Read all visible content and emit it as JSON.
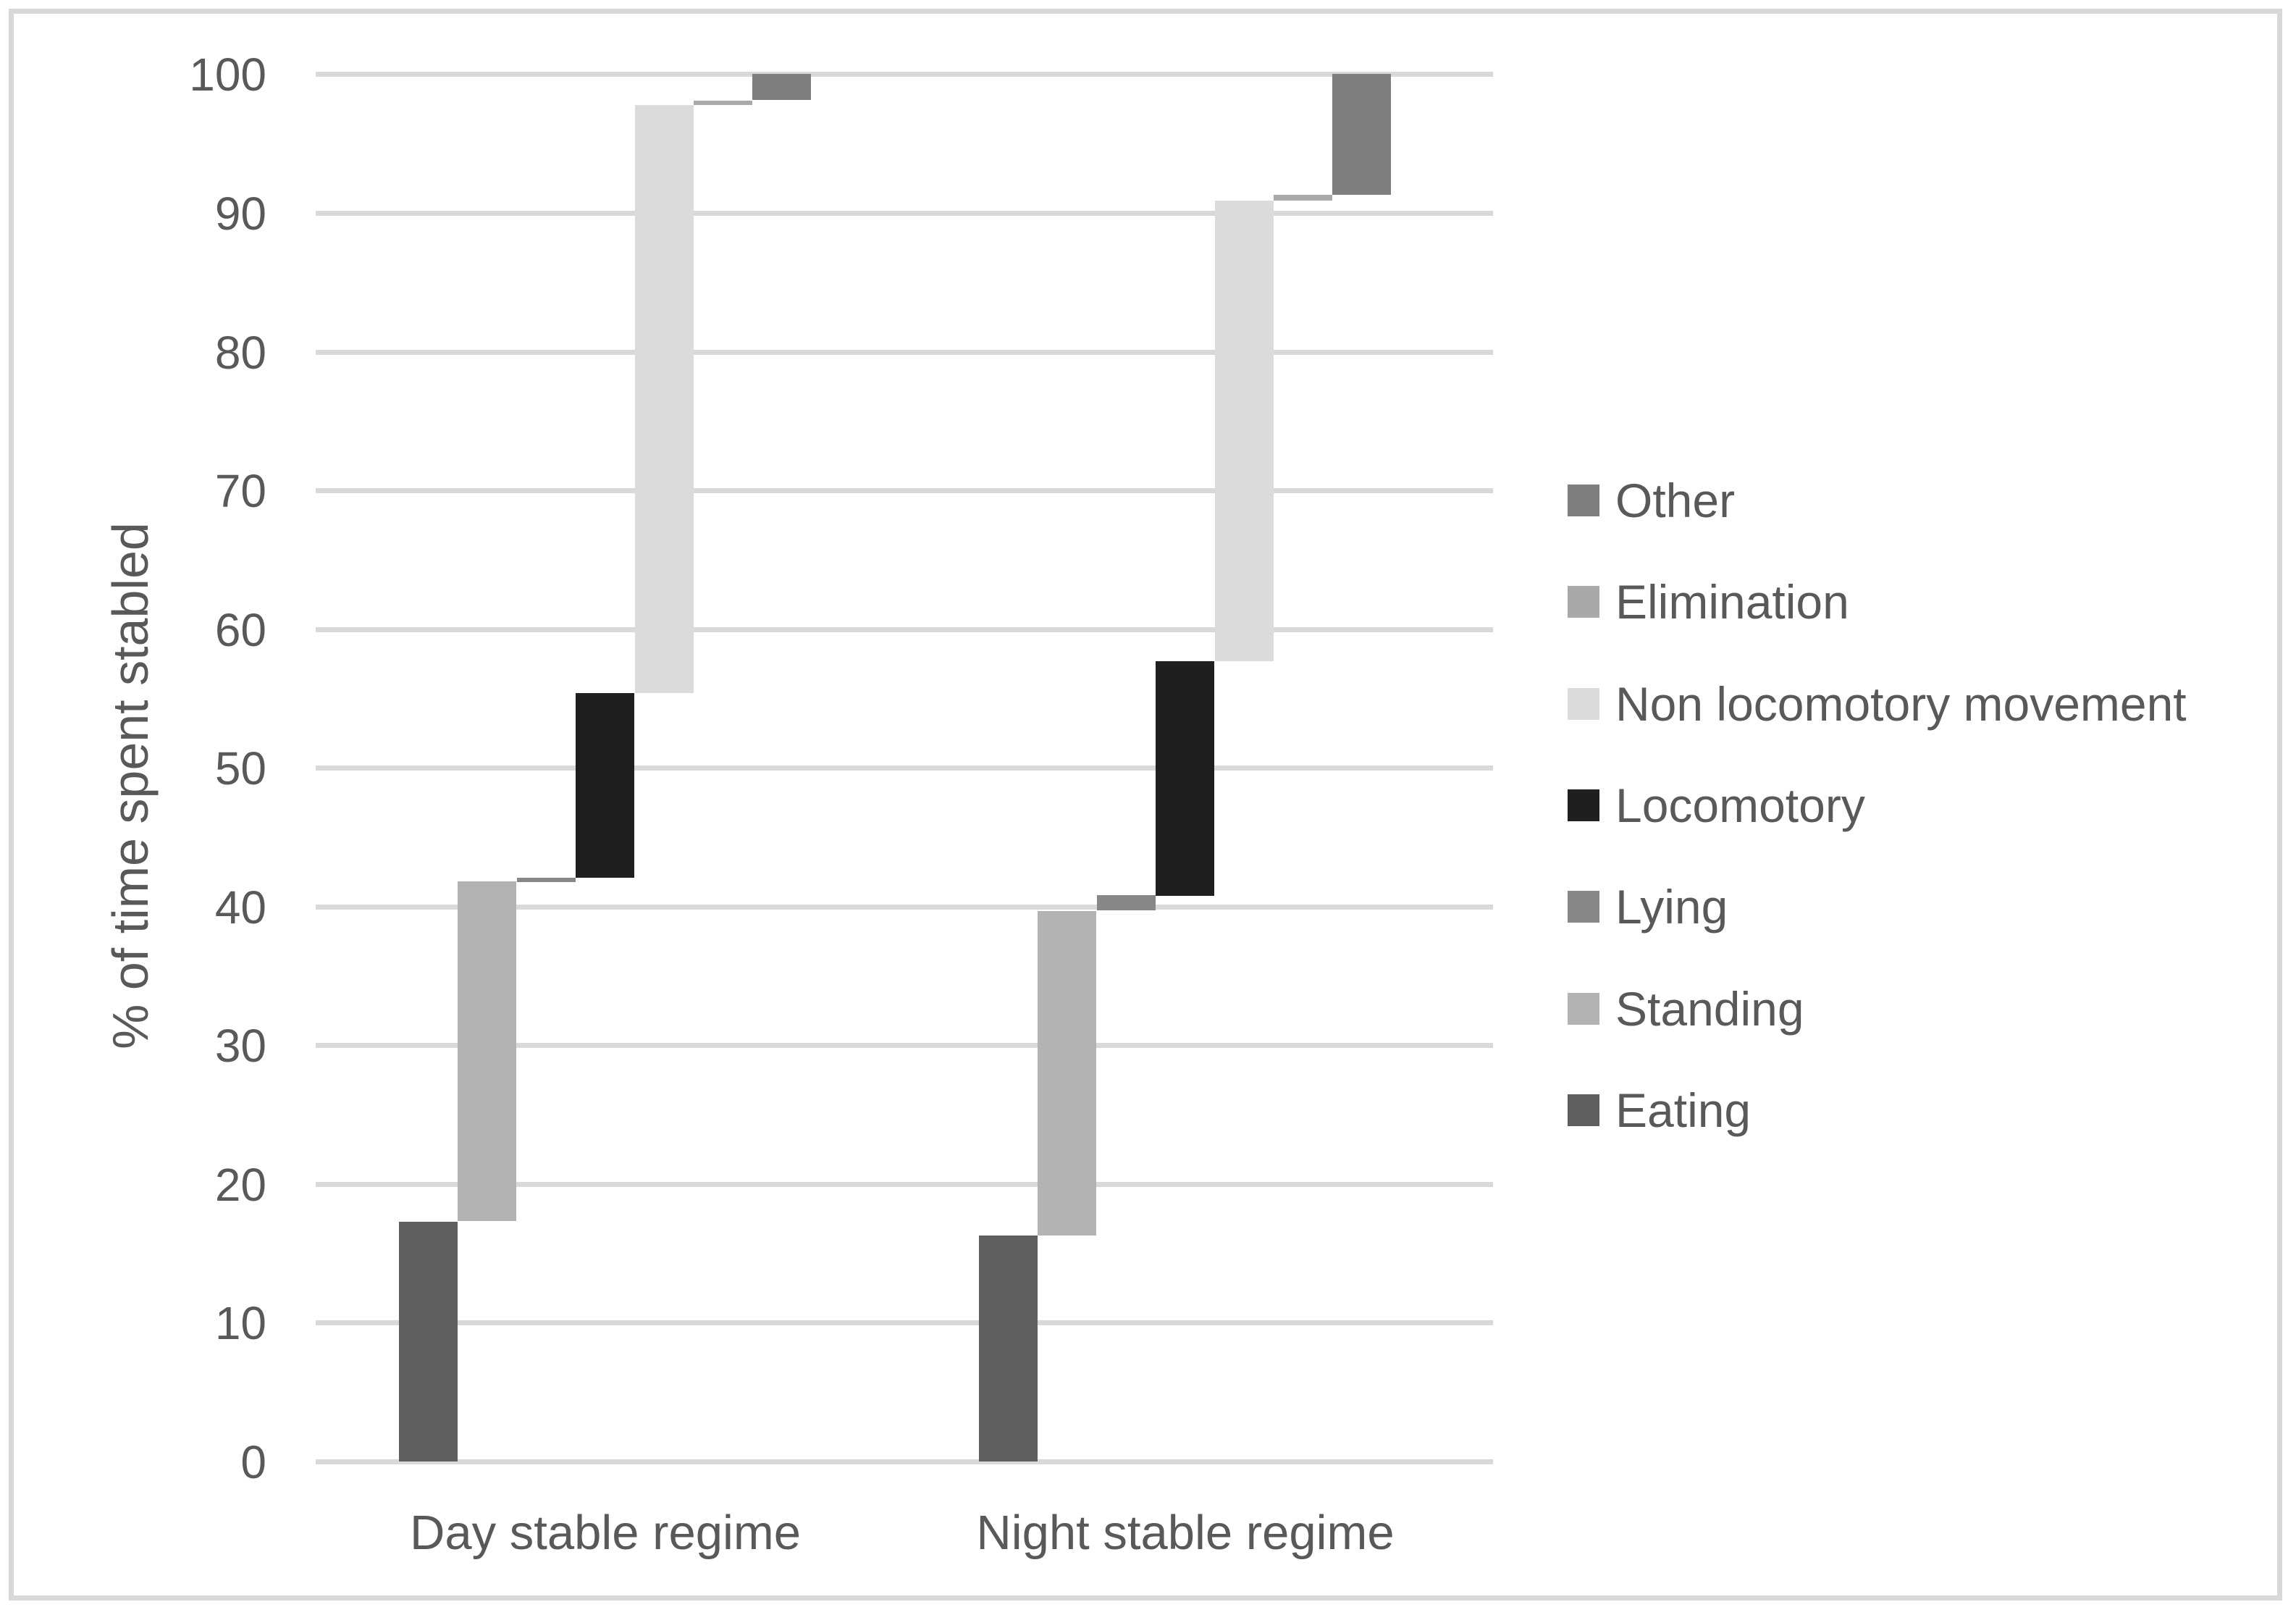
{
  "figure": {
    "y_axis_title": "% of time spent stabled",
    "y_tick_labels": [
      "0",
      "10",
      "20",
      "30",
      "40",
      "50",
      "60",
      "70",
      "80",
      "90",
      "100"
    ],
    "x_category_labels": [
      "Day stable regime",
      "Night stable regime"
    ]
  },
  "colors": {
    "background": "#ffffff",
    "frame_border": "#d8d8d8",
    "gridline": "#d9d9d9",
    "text": "#595959"
  },
  "chart_data": {
    "type": "bar",
    "variant": "stacked-stepped-columns",
    "title": "",
    "xlabel": "",
    "ylabel": "% of time spent stabled",
    "ylim": [
      0,
      100
    ],
    "ytick_step": 10,
    "grid": "horizontal",
    "legend_position": "right",
    "categories": [
      "Day stable regime",
      "Night stable regime"
    ],
    "series": [
      {
        "name": "Eating",
        "color": "#5e5e5e",
        "values": [
          17.3,
          16.3
        ]
      },
      {
        "name": "Standing",
        "color": "#b3b3b3",
        "values": [
          24.5,
          23.4
        ]
      },
      {
        "name": "Lying",
        "color": "#878787",
        "values": [
          0.3,
          1.1
        ]
      },
      {
        "name": "Locomotory",
        "color": "#1f1f1f",
        "values": [
          13.3,
          16.9
        ]
      },
      {
        "name": "Non locomotory movement",
        "color": "#dbdbdb",
        "values": [
          42.4,
          33.2
        ]
      },
      {
        "name": "Elimination",
        "color": "#a9a9a9",
        "values": [
          0.3,
          0.4
        ]
      },
      {
        "name": "Other",
        "color": "#7f7f7f",
        "values": [
          1.9,
          8.7
        ]
      }
    ],
    "stacked_totals": [
      100,
      100
    ],
    "legend_order": [
      "Other",
      "Elimination",
      "Non locomotory movement",
      "Locomotory",
      "Lying",
      "Standing",
      "Eating"
    ]
  }
}
